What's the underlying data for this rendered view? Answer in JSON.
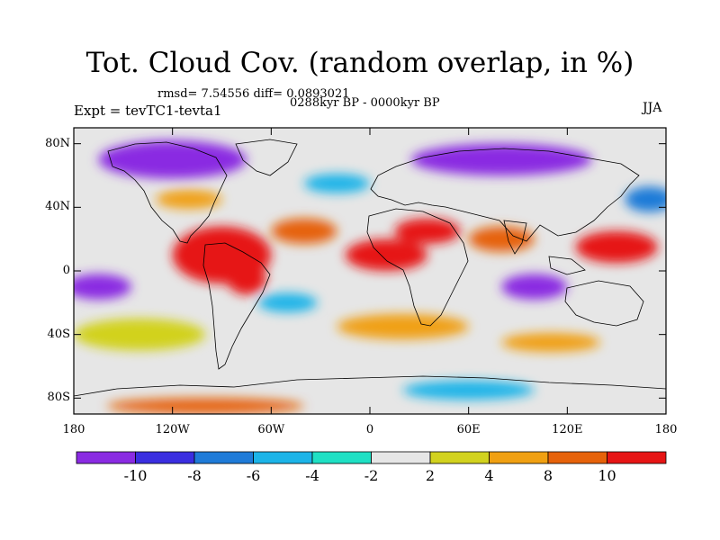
{
  "figure": {
    "title": "Tot. Cloud Cov. (random overlap, in %)",
    "stats": "rmsd= 7.54556 diff= 0.0893021",
    "period": "0288kyr BP - 0000kyr BP",
    "experiment": "Expt = tevTC1-tevta1",
    "season": "JJA"
  },
  "map": {
    "projection": "cylindrical equidistant",
    "lon_range": [
      -180,
      180
    ],
    "lat_range": [
      -90,
      90
    ],
    "lat_ticks": [
      {
        "value": 80,
        "label": "80N"
      },
      {
        "value": 40,
        "label": "40N"
      },
      {
        "value": 0,
        "label": "0"
      },
      {
        "value": -40,
        "label": "40S"
      },
      {
        "value": -80,
        "label": "80S"
      }
    ],
    "lon_ticks": [
      {
        "value": -180,
        "label": "180"
      },
      {
        "value": -120,
        "label": "120W"
      },
      {
        "value": -60,
        "label": "60W"
      },
      {
        "value": 0,
        "label": "0"
      },
      {
        "value": 60,
        "label": "60E"
      },
      {
        "value": 120,
        "label": "120E"
      },
      {
        "value": 180,
        "label": "180"
      }
    ]
  },
  "colorbar": {
    "levels": [
      -10,
      -8,
      -6,
      -4,
      -2,
      2,
      4,
      8,
      10
    ],
    "labels": [
      "-10",
      "-8",
      "-6",
      "-4",
      "-2",
      "2",
      "4",
      "8",
      "10"
    ],
    "colors": [
      "#8a2be2",
      "#3a2ee0",
      "#1f7bd8",
      "#1cb4e8",
      "#1fe0c4",
      "#e6e6e6",
      "#d2d21e",
      "#f0a012",
      "#e6620a",
      "#e61414"
    ]
  },
  "anomaly_blobs": [
    {
      "lon": -90,
      "lat": 10,
      "rx": 30,
      "ry": 18,
      "v": 11
    },
    {
      "lon": -75,
      "lat": -5,
      "rx": 12,
      "ry": 10,
      "v": 11
    },
    {
      "lon": 10,
      "lat": 10,
      "rx": 25,
      "ry": 10,
      "v": 11
    },
    {
      "lon": 35,
      "lat": 25,
      "rx": 20,
      "ry": 8,
      "v": 11
    },
    {
      "lon": -40,
      "lat": 25,
      "rx": 20,
      "ry": 8,
      "v": 9
    },
    {
      "lon": 80,
      "lat": 20,
      "rx": 20,
      "ry": 8,
      "v": 9
    },
    {
      "lon": 150,
      "lat": 15,
      "rx": 25,
      "ry": 10,
      "v": 11
    },
    {
      "lon": -110,
      "lat": 45,
      "rx": 20,
      "ry": 6,
      "v": 5
    },
    {
      "lon": 20,
      "lat": -35,
      "rx": 40,
      "ry": 8,
      "v": 5
    },
    {
      "lon": -140,
      "lat": -40,
      "rx": 40,
      "ry": 10,
      "v": 3
    },
    {
      "lon": 110,
      "lat": -45,
      "rx": 30,
      "ry": 6,
      "v": 5
    },
    {
      "lon": -120,
      "lat": 70,
      "rx": 45,
      "ry": 12,
      "v": -11
    },
    {
      "lon": 80,
      "lat": 70,
      "rx": 55,
      "ry": 10,
      "v": -11
    },
    {
      "lon": -165,
      "lat": -10,
      "rx": 20,
      "ry": 8,
      "v": -11
    },
    {
      "lon": 100,
      "lat": -10,
      "rx": 20,
      "ry": 8,
      "v": -11
    },
    {
      "lon": 170,
      "lat": 45,
      "rx": 15,
      "ry": 8,
      "v": -7
    },
    {
      "lon": 60,
      "lat": -75,
      "rx": 40,
      "ry": 6,
      "v": -5
    },
    {
      "lon": -100,
      "lat": -85,
      "rx": 60,
      "ry": 5,
      "v": 9
    },
    {
      "lon": -50,
      "lat": -20,
      "rx": 18,
      "ry": 6,
      "v": -5
    },
    {
      "lon": -20,
      "lat": 55,
      "rx": 20,
      "ry": 6,
      "v": -5
    }
  ]
}
